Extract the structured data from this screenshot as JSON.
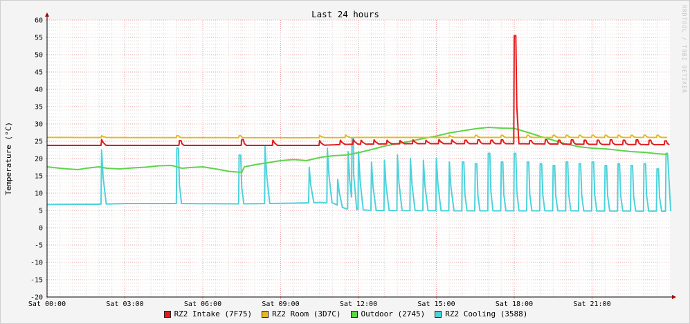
{
  "chart_data": {
    "type": "line",
    "title": "Last 24 hours",
    "ylabel": "Temperature (°C)",
    "watermark": "RRDTOOL / TOBI OETIKER",
    "ylim": [
      -20,
      60
    ],
    "xlim": [
      "Sat 00:00",
      "Sun 00:00"
    ],
    "y_ticks": [
      60,
      55,
      50,
      45,
      40,
      35,
      30,
      25,
      20,
      15,
      10,
      5,
      0,
      -5,
      -10,
      -15,
      -20
    ],
    "x_tick_labels": [
      "Sat 00:00",
      "Sat 03:00",
      "Sat 06:00",
      "Sat 09:00",
      "Sat 12:00",
      "Sat 15:00",
      "Sat 18:00",
      "Sat 21:00"
    ],
    "grid": true,
    "legend_position": "bottom",
    "series": [
      {
        "name": "RZ2 Intake (7F75)",
        "color": "#e31a1c",
        "baseline": [
          [
            0,
            23.8
          ],
          [
            10.5,
            23.8
          ],
          [
            11.5,
            24.1
          ],
          [
            14,
            24.3
          ],
          [
            18,
            24.3
          ],
          [
            21,
            24.1
          ],
          [
            23.9,
            24.0
          ]
        ],
        "spikes": [
          {
            "x": 2.1,
            "y": 25.5
          },
          {
            "x": 5.1,
            "y": 25.2
          },
          {
            "x": 7.5,
            "y": 25.5
          },
          {
            "x": 8.7,
            "y": 25.3
          },
          {
            "x": 10.5,
            "y": 25.2
          },
          {
            "x": 11.3,
            "y": 25.3
          },
          {
            "x": 11.8,
            "y": 25.5
          },
          {
            "x": 12.1,
            "y": 25.3
          },
          {
            "x": 12.6,
            "y": 25.4
          },
          {
            "x": 13.1,
            "y": 25.3
          },
          {
            "x": 13.6,
            "y": 25.2
          },
          {
            "x": 14.1,
            "y": 25.4
          },
          {
            "x": 14.6,
            "y": 25.3
          },
          {
            "x": 15.1,
            "y": 25.5
          },
          {
            "x": 15.6,
            "y": 25.4
          },
          {
            "x": 16.1,
            "y": 25.3
          },
          {
            "x": 16.6,
            "y": 25.4
          },
          {
            "x": 17.1,
            "y": 25.3
          },
          {
            "x": 17.5,
            "y": 25.4
          },
          {
            "x": 18.0,
            "y": 55.5
          },
          {
            "x": 18.6,
            "y": 25.2
          },
          {
            "x": 19.2,
            "y": 25.4
          },
          {
            "x": 19.7,
            "y": 25.3
          },
          {
            "x": 20.2,
            "y": 25.4
          },
          {
            "x": 20.7,
            "y": 25.3
          },
          {
            "x": 21.2,
            "y": 25.3
          },
          {
            "x": 21.7,
            "y": 25.4
          },
          {
            "x": 22.2,
            "y": 25.3
          },
          {
            "x": 22.7,
            "y": 25.4
          },
          {
            "x": 23.2,
            "y": 25.3
          },
          {
            "x": 23.8,
            "y": 25.1
          }
        ]
      },
      {
        "name": "RZ2 Room (3D7C)",
        "color": "#e6b81e",
        "baseline": [
          [
            0,
            26.1
          ],
          [
            10,
            26.0
          ],
          [
            12,
            26.1
          ],
          [
            18,
            26.1
          ],
          [
            23.9,
            26.1
          ]
        ],
        "spikes": [
          {
            "x": 2.1,
            "y": 26.6
          },
          {
            "x": 5.0,
            "y": 26.6
          },
          {
            "x": 7.4,
            "y": 26.6
          },
          {
            "x": 10.5,
            "y": 26.7
          },
          {
            "x": 11.5,
            "y": 26.8
          },
          {
            "x": 15.5,
            "y": 26.7
          },
          {
            "x": 16.5,
            "y": 26.7
          },
          {
            "x": 17.5,
            "y": 26.7
          },
          {
            "x": 18.5,
            "y": 26.7
          },
          {
            "x": 19.5,
            "y": 26.7
          },
          {
            "x": 20.0,
            "y": 26.7
          },
          {
            "x": 20.5,
            "y": 26.7
          },
          {
            "x": 21.0,
            "y": 26.7
          },
          {
            "x": 21.5,
            "y": 26.7
          },
          {
            "x": 22.0,
            "y": 26.7
          },
          {
            "x": 22.5,
            "y": 26.7
          },
          {
            "x": 23.0,
            "y": 26.7
          },
          {
            "x": 23.5,
            "y": 26.7
          }
        ]
      },
      {
        "name": "Outdoor (2745)",
        "color": "#5ed44a",
        "points": [
          [
            0.0,
            17.6
          ],
          [
            0.5,
            17.2
          ],
          [
            0.8,
            17.0
          ],
          [
            1.2,
            16.8
          ],
          [
            1.5,
            17.2
          ],
          [
            2.0,
            17.6
          ],
          [
            2.3,
            17.2
          ],
          [
            2.8,
            17.0
          ],
          [
            3.3,
            17.3
          ],
          [
            3.8,
            17.5
          ],
          [
            4.3,
            17.9
          ],
          [
            4.8,
            18.0
          ],
          [
            5.2,
            17.2
          ],
          [
            5.5,
            17.4
          ],
          [
            6.0,
            17.6
          ],
          [
            6.5,
            17.0
          ],
          [
            7.0,
            16.3
          ],
          [
            7.5,
            16.0
          ],
          [
            7.6,
            17.6
          ],
          [
            8.0,
            18.2
          ],
          [
            8.5,
            18.8
          ],
          [
            9.0,
            19.4
          ],
          [
            9.5,
            19.7
          ],
          [
            10.0,
            19.4
          ],
          [
            10.5,
            20.3
          ],
          [
            11.0,
            20.8
          ],
          [
            11.5,
            21.0
          ],
          [
            12.0,
            21.7
          ],
          [
            12.5,
            22.6
          ],
          [
            13.0,
            23.6
          ],
          [
            13.5,
            24.3
          ],
          [
            14.0,
            25.0
          ],
          [
            14.5,
            25.8
          ],
          [
            15.0,
            26.5
          ],
          [
            15.5,
            27.4
          ],
          [
            16.0,
            28.0
          ],
          [
            16.5,
            28.6
          ],
          [
            17.0,
            29.0
          ],
          [
            17.5,
            28.8
          ],
          [
            18.0,
            28.7
          ],
          [
            18.5,
            27.6
          ],
          [
            19.0,
            26.4
          ],
          [
            19.5,
            25.3
          ],
          [
            20.0,
            24.2
          ],
          [
            20.5,
            23.4
          ],
          [
            21.0,
            23.0
          ],
          [
            21.5,
            22.8
          ],
          [
            22.0,
            22.4
          ],
          [
            22.5,
            22.0
          ],
          [
            23.0,
            21.8
          ],
          [
            23.5,
            21.4
          ],
          [
            23.9,
            21.2
          ]
        ]
      },
      {
        "name": "RZ2 Cooling (3588)",
        "color": "#4dd2dc",
        "baseline": [
          [
            0,
            6.7
          ],
          [
            1.0,
            6.8
          ],
          [
            2.0,
            6.8
          ],
          [
            3.0,
            7.0
          ],
          [
            5.0,
            7.0
          ],
          [
            7.5,
            6.9
          ],
          [
            8.5,
            7.0
          ],
          [
            9.5,
            7.1
          ],
          [
            10.5,
            7.3
          ],
          [
            11.0,
            7.2
          ],
          [
            11.5,
            5.5
          ],
          [
            12.5,
            5.0
          ],
          [
            16.0,
            4.9
          ],
          [
            20.0,
            4.9
          ],
          [
            23.9,
            4.8
          ]
        ],
        "spikes": [
          {
            "x": 2.1,
            "y": 22.5
          },
          {
            "x": 5.0,
            "y": 23.0
          },
          {
            "x": 7.4,
            "y": 21.0
          },
          {
            "x": 8.4,
            "y": 23.5
          },
          {
            "x": 10.1,
            "y": 17.5
          },
          {
            "x": 10.8,
            "y": 23.0
          },
          {
            "x": 11.2,
            "y": 14.0
          },
          {
            "x": 11.6,
            "y": 22.0
          },
          {
            "x": 11.75,
            "y": 26.0
          },
          {
            "x": 12.0,
            "y": 22.0
          },
          {
            "x": 12.5,
            "y": 19.0
          },
          {
            "x": 13.0,
            "y": 19.5
          },
          {
            "x": 13.5,
            "y": 21.0
          },
          {
            "x": 14.0,
            "y": 20.0
          },
          {
            "x": 14.5,
            "y": 19.5
          },
          {
            "x": 15.0,
            "y": 20.0
          },
          {
            "x": 15.5,
            "y": 19.0
          },
          {
            "x": 16.0,
            "y": 19.0
          },
          {
            "x": 16.5,
            "y": 18.5
          },
          {
            "x": 17.0,
            "y": 21.5
          },
          {
            "x": 17.5,
            "y": 19.0
          },
          {
            "x": 18.0,
            "y": 21.5
          },
          {
            "x": 18.5,
            "y": 19.0
          },
          {
            "x": 19.0,
            "y": 18.5
          },
          {
            "x": 19.5,
            "y": 18.0
          },
          {
            "x": 20.0,
            "y": 19.0
          },
          {
            "x": 20.5,
            "y": 18.5
          },
          {
            "x": 21.0,
            "y": 19.0
          },
          {
            "x": 21.5,
            "y": 18.0
          },
          {
            "x": 22.0,
            "y": 18.5
          },
          {
            "x": 22.5,
            "y": 18.0
          },
          {
            "x": 23.0,
            "y": 18.5
          },
          {
            "x": 23.5,
            "y": 17.0
          },
          {
            "x": 23.85,
            "y": 21.5
          }
        ]
      }
    ]
  }
}
